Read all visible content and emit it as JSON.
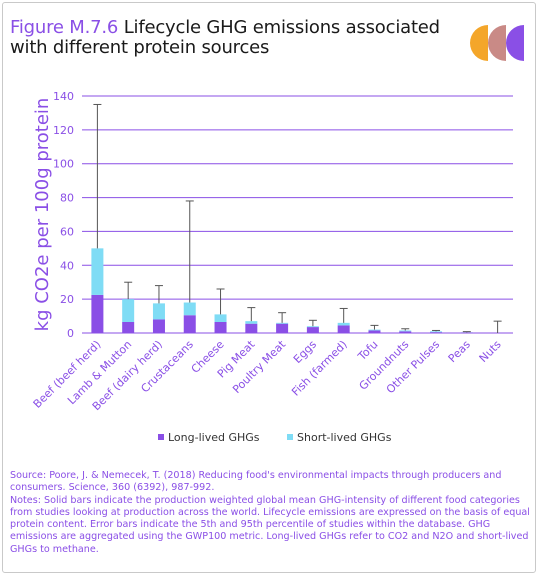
{
  "figure": {
    "number": "Figure M.7.6",
    "title": "Lifecycle GHG emissions associated with different protein sources"
  },
  "colors": {
    "accent": "#8a4fe6",
    "long_lived": "#8a4fe6",
    "short_lived": "#7fdcf5",
    "error_bar": "#555555",
    "logo_orange": "#f4a62a",
    "logo_rose": "#c98a86",
    "logo_violet": "#8a4fe6"
  },
  "legend": {
    "long_lived": "Long-lived GHGs",
    "short_lived": "Short-lived GHGs"
  },
  "notes": {
    "source": "Source: Poore, J. & Nemecek, T. (2018) Reducing food's environmental impacts through producers and consumers. Science, 360 (6392), 987-992.",
    "text": "Notes: Solid bars indicate the production weighted global mean GHG-intensity of different food categories from studies looking at production across the world. Lifecycle emissions are expressed on the basis of equal protein content. Error bars indicate the 5th and 95th percentile of studies within the database. GHG emissions are aggregated using the GWP100 metric. Long-lived GHGs refer to CO2 and N2O and short-lived GHGs to methane."
  },
  "chart_data": {
    "type": "bar",
    "stacked": true,
    "ylabel": "kg CO2e per 100g protein",
    "ylim": [
      0,
      140
    ],
    "yticks": [
      0,
      20,
      40,
      60,
      80,
      100,
      120,
      140
    ],
    "grid": true,
    "legend_position": "bottom",
    "categories": [
      "Beef (beef herd)",
      "Lamb & Mutton",
      "Beef (dairy herd)",
      "Crustaceans",
      "Cheese",
      "Pig Meat",
      "Poultry Meat",
      "Eggs",
      "Fish (farmed)",
      "Tofu",
      "Groundnuts",
      "Other Pulses",
      "Peas",
      "Nuts"
    ],
    "series": [
      {
        "name": "Long-lived GHGs",
        "values": [
          22.5,
          6.5,
          8.0,
          10.5,
          6.5,
          5.5,
          5.5,
          3.5,
          4.5,
          1.5,
          1.0,
          0.5,
          0.3,
          0.0
        ]
      },
      {
        "name": "Short-lived GHGs",
        "values": [
          27.5,
          13.5,
          9.5,
          7.5,
          4.5,
          1.5,
          0.5,
          0.5,
          1.5,
          0.5,
          0.5,
          0.5,
          0.1,
          0.0
        ]
      }
    ],
    "error_bars": [
      [
        null,
        135
      ],
      [
        null,
        30
      ],
      [
        null,
        28
      ],
      [
        null,
        78
      ],
      [
        null,
        26
      ],
      [
        null,
        15
      ],
      [
        null,
        12
      ],
      [
        null,
        7.5
      ],
      [
        null,
        14.5
      ],
      [
        null,
        4.5
      ],
      [
        null,
        2.5
      ],
      [
        null,
        1.5
      ],
      [
        null,
        0.8
      ],
      [
        null,
        7
      ]
    ]
  }
}
